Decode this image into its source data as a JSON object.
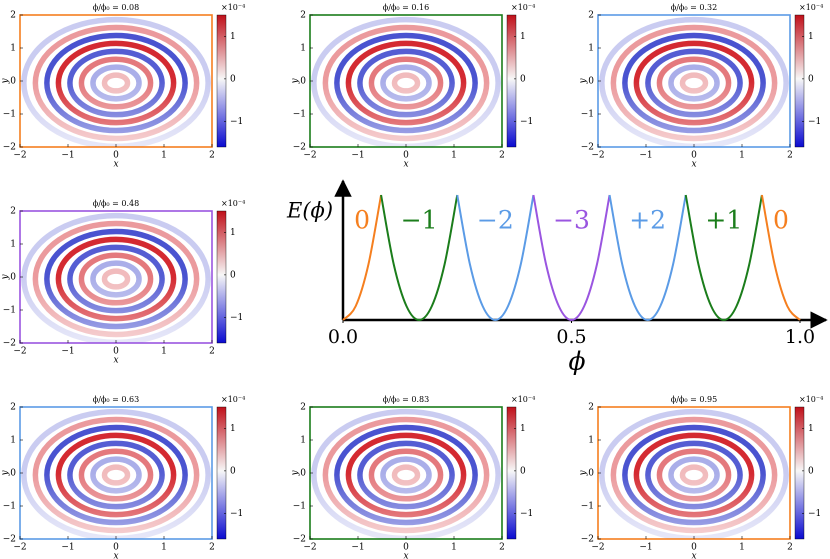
{
  "chart_data": [
    {
      "type": "heatmap",
      "title": "ϕ/ϕ₀ = 0.08",
      "xlabel": "x",
      "ylabel": "y",
      "frame_color": "#f57f1f",
      "xlim": [
        -2,
        2
      ],
      "ylim": [
        -2,
        2
      ],
      "xticks": [
        {
          "value": -2,
          "label": "−2"
        },
        {
          "value": -1,
          "label": "−1"
        },
        0,
        1,
        2
      ],
      "yticks": [
        {
          "value": -2,
          "label": "−2"
        },
        {
          "value": -1,
          "label": "−1"
        },
        0,
        1,
        2
      ],
      "clim": [
        -1.6,
        1.5
      ],
      "cticks": [
        {
          "value": -1,
          "label": "−1"
        },
        0,
        1
      ],
      "clabel": "×10⁻⁴"
    },
    {
      "type": "heatmap",
      "title": "ϕ/ϕ₀ = 0.16",
      "xlabel": "x",
      "ylabel": "y",
      "frame_color": "#1b7d1b",
      "xlim": [
        -2,
        2
      ],
      "ylim": [
        -2,
        2
      ],
      "xticks": [
        {
          "value": -2,
          "label": "−2"
        },
        {
          "value": -1,
          "label": "−1"
        },
        0,
        1,
        2
      ],
      "yticks": [
        {
          "value": -2,
          "label": "−2"
        },
        {
          "value": -1,
          "label": "−1"
        },
        0,
        1,
        2
      ],
      "clim": [
        -1.6,
        1.5
      ],
      "cticks": [
        {
          "value": -1,
          "label": "−1"
        },
        0,
        1
      ],
      "clabel": "×10⁻⁴"
    },
    {
      "type": "heatmap",
      "title": "ϕ/ϕ₀ = 0.32",
      "xlabel": "x",
      "ylabel": "y",
      "frame_color": "#5b9be6",
      "xlim": [
        -2,
        2
      ],
      "ylim": [
        -2,
        2
      ],
      "xticks": [
        {
          "value": -2,
          "label": "−2"
        },
        {
          "value": -1,
          "label": "−1"
        },
        0,
        1,
        2
      ],
      "yticks": [
        {
          "value": -2,
          "label": "−2"
        },
        {
          "value": -1,
          "label": "−1"
        },
        0,
        1,
        2
      ],
      "clim": [
        -1.6,
        1.5
      ],
      "cticks": [
        {
          "value": -1,
          "label": "−1"
        },
        0,
        1
      ],
      "clabel": "×10⁻⁴"
    },
    {
      "type": "heatmap",
      "title": "ϕ/ϕ₀ = 0.48",
      "xlabel": "x",
      "ylabel": "y",
      "frame_color": "#9a55e0",
      "xlim": [
        -2,
        2
      ],
      "ylim": [
        -2,
        2
      ],
      "xticks": [
        {
          "value": -2,
          "label": "−2"
        },
        {
          "value": -1,
          "label": "−1"
        },
        0,
        1,
        2
      ],
      "yticks": [
        {
          "value": -2,
          "label": "−2"
        },
        {
          "value": -1,
          "label": "−1"
        },
        0,
        1,
        2
      ],
      "clim": [
        -1.6,
        1.5
      ],
      "cticks": [
        {
          "value": -1,
          "label": "−1"
        },
        0,
        1
      ],
      "clabel": "×10⁻⁴"
    },
    {
      "type": "heatmap",
      "title": "ϕ/ϕ₀ = 0.63",
      "xlabel": "x",
      "ylabel": "y",
      "frame_color": "#5b9be6",
      "xlim": [
        -2,
        2
      ],
      "ylim": [
        -2,
        2
      ],
      "xticks": [
        {
          "value": -2,
          "label": "−2"
        },
        {
          "value": -1,
          "label": "−1"
        },
        0,
        1,
        2
      ],
      "yticks": [
        {
          "value": -2,
          "label": "−2"
        },
        {
          "value": -1,
          "label": "−1"
        },
        0,
        1,
        2
      ],
      "clim": [
        -1.6,
        1.5
      ],
      "cticks": [
        {
          "value": -1,
          "label": "−1"
        },
        0,
        1
      ],
      "clabel": "×10⁻⁴"
    },
    {
      "type": "heatmap",
      "title": "ϕ/ϕ₀ = 0.83",
      "xlabel": "x",
      "ylabel": "y",
      "frame_color": "#1b7d1b",
      "xlim": [
        -2,
        2
      ],
      "ylim": [
        -2,
        2
      ],
      "xticks": [
        {
          "value": -2,
          "label": "−2"
        },
        {
          "value": -1,
          "label": "−1"
        },
        0,
        1,
        2
      ],
      "yticks": [
        {
          "value": -2,
          "label": "−2"
        },
        {
          "value": -1,
          "label": "−1"
        },
        0,
        1,
        2
      ],
      "clim": [
        -1.6,
        1.5
      ],
      "cticks": [
        {
          "value": -1,
          "label": "−1"
        },
        0,
        1
      ],
      "clabel": "×10⁻⁴"
    },
    {
      "type": "heatmap",
      "title": "ϕ/ϕ₀ = 0.95",
      "xlabel": "x",
      "ylabel": "y",
      "frame_color": "#f57f1f",
      "xlim": [
        -2,
        2
      ],
      "ylim": [
        -2,
        2
      ],
      "xticks": [
        {
          "value": -2,
          "label": "−2"
        },
        {
          "value": -1,
          "label": "−1"
        },
        0,
        1,
        2
      ],
      "yticks": [
        {
          "value": -2,
          "label": "−2"
        },
        {
          "value": -1,
          "label": "−1"
        },
        0,
        1,
        2
      ],
      "clim": [
        -1.6,
        1.5
      ],
      "cticks": [
        {
          "value": -1,
          "label": "−1"
        },
        0,
        1
      ],
      "clabel": "×10⁻⁴"
    },
    {
      "type": "line",
      "xlabel": "ϕ",
      "ylabel": "E(ϕ)",
      "xlim": [
        0,
        1
      ],
      "ylim": [
        0,
        1.1
      ],
      "xticks": [
        {
          "value": 0,
          "label": "0.0"
        },
        0.5,
        {
          "value": 1,
          "label": "1.0"
        }
      ],
      "series": [
        {
          "name": "0",
          "color": "#f57f1f",
          "x": [
            0,
            0.0278,
            0.0556,
            0.0833
          ],
          "values": [
            0,
            0.111,
            0.444,
            1
          ]
        },
        {
          "name": "−1",
          "color": "#1b7d1b",
          "x": [
            0.0833,
            0.1111,
            0.1389,
            0.1667,
            0.1944,
            0.2222,
            0.25
          ],
          "values": [
            1,
            0.444,
            0.111,
            0,
            0.111,
            0.444,
            1
          ]
        },
        {
          "name": "−2",
          "color": "#5b9be6",
          "x": [
            0.25,
            0.2778,
            0.3056,
            0.3333,
            0.3611,
            0.3889,
            0.4167
          ],
          "values": [
            1,
            0.444,
            0.111,
            0,
            0.111,
            0.444,
            1
          ]
        },
        {
          "name": "−3",
          "color": "#9a55e0",
          "x": [
            0.4167,
            0.4444,
            0.4722,
            0.5,
            0.5278,
            0.5556,
            0.5833
          ],
          "values": [
            1,
            0.444,
            0.111,
            0,
            0.111,
            0.444,
            1
          ]
        },
        {
          "name": "+2",
          "color": "#5b9be6",
          "x": [
            0.5833,
            0.6111,
            0.6389,
            0.6667,
            0.6944,
            0.7222,
            0.75
          ],
          "values": [
            1,
            0.444,
            0.111,
            0,
            0.111,
            0.444,
            1
          ]
        },
        {
          "name": "+1",
          "color": "#1b7d1b",
          "x": [
            0.75,
            0.7778,
            0.8056,
            0.8333,
            0.8611,
            0.8889,
            0.9167
          ],
          "values": [
            1,
            0.444,
            0.111,
            0,
            0.111,
            0.444,
            1
          ]
        },
        {
          "name": "0",
          "color": "#f57f1f",
          "x": [
            0.9167,
            0.9444,
            0.9722,
            1
          ],
          "values": [
            1,
            0.444,
            0.111,
            0
          ]
        }
      ]
    }
  ]
}
